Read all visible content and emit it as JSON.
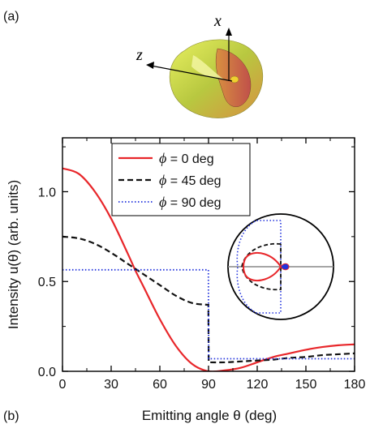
{
  "panel_a": {
    "label": "(a)",
    "axis_x_label": "x",
    "axis_z_label": "z",
    "surface_colors": [
      "#e8f060",
      "#b8c840",
      "#d89040",
      "#c0504a"
    ]
  },
  "panel_b": {
    "label": "(b)"
  },
  "chart_data": {
    "type": "line",
    "xlabel": "Emitting angle θ (deg)",
    "ylabel": "Intensity u(θ) (arb. units)",
    "xlim": [
      0,
      180
    ],
    "ylim": [
      0,
      1.3
    ],
    "xticks": [
      0,
      30,
      60,
      90,
      120,
      150,
      180
    ],
    "yticks": [
      0.0,
      0.5,
      1.0
    ],
    "ytick_labels": [
      "0.0",
      "0.5",
      "1.0"
    ],
    "grid": false,
    "legend_position": "top-left",
    "series": [
      {
        "name": "ϕ = 0 deg",
        "name_parts": [
          "ϕ",
          " = 0 deg"
        ],
        "color": "#e8262a",
        "style": "solid",
        "x": [
          0,
          10,
          20,
          30,
          40,
          45,
          50,
          60,
          70,
          80,
          90,
          100,
          110,
          120,
          130,
          140,
          150,
          160,
          170,
          180
        ],
        "y": [
          1.13,
          1.1,
          1.0,
          0.85,
          0.66,
          0.56,
          0.47,
          0.29,
          0.14,
          0.04,
          0.0,
          0.005,
          0.02,
          0.05,
          0.08,
          0.1,
          0.12,
          0.135,
          0.145,
          0.15
        ]
      },
      {
        "name": "ϕ = 45 deg",
        "name_parts": [
          "ϕ",
          " = 45 deg"
        ],
        "color": "#111111",
        "style": "dashed",
        "x": [
          0,
          10,
          20,
          30,
          40,
          50,
          60,
          70,
          80,
          89.9,
          90.1,
          100,
          110,
          120,
          130,
          140,
          150,
          160,
          170,
          180
        ],
        "y": [
          0.75,
          0.74,
          0.71,
          0.66,
          0.6,
          0.54,
          0.48,
          0.42,
          0.38,
          0.37,
          0.05,
          0.05,
          0.055,
          0.06,
          0.065,
          0.075,
          0.08,
          0.09,
          0.095,
          0.1
        ]
      },
      {
        "name": "ϕ = 90 deg",
        "name_parts": [
          "ϕ",
          " = 90 deg"
        ],
        "color": "#2233dd",
        "style": "dotted",
        "x": [
          0,
          89.9,
          90.1,
          180
        ],
        "y": [
          0.565,
          0.565,
          0.07,
          0.07
        ]
      }
    ]
  }
}
